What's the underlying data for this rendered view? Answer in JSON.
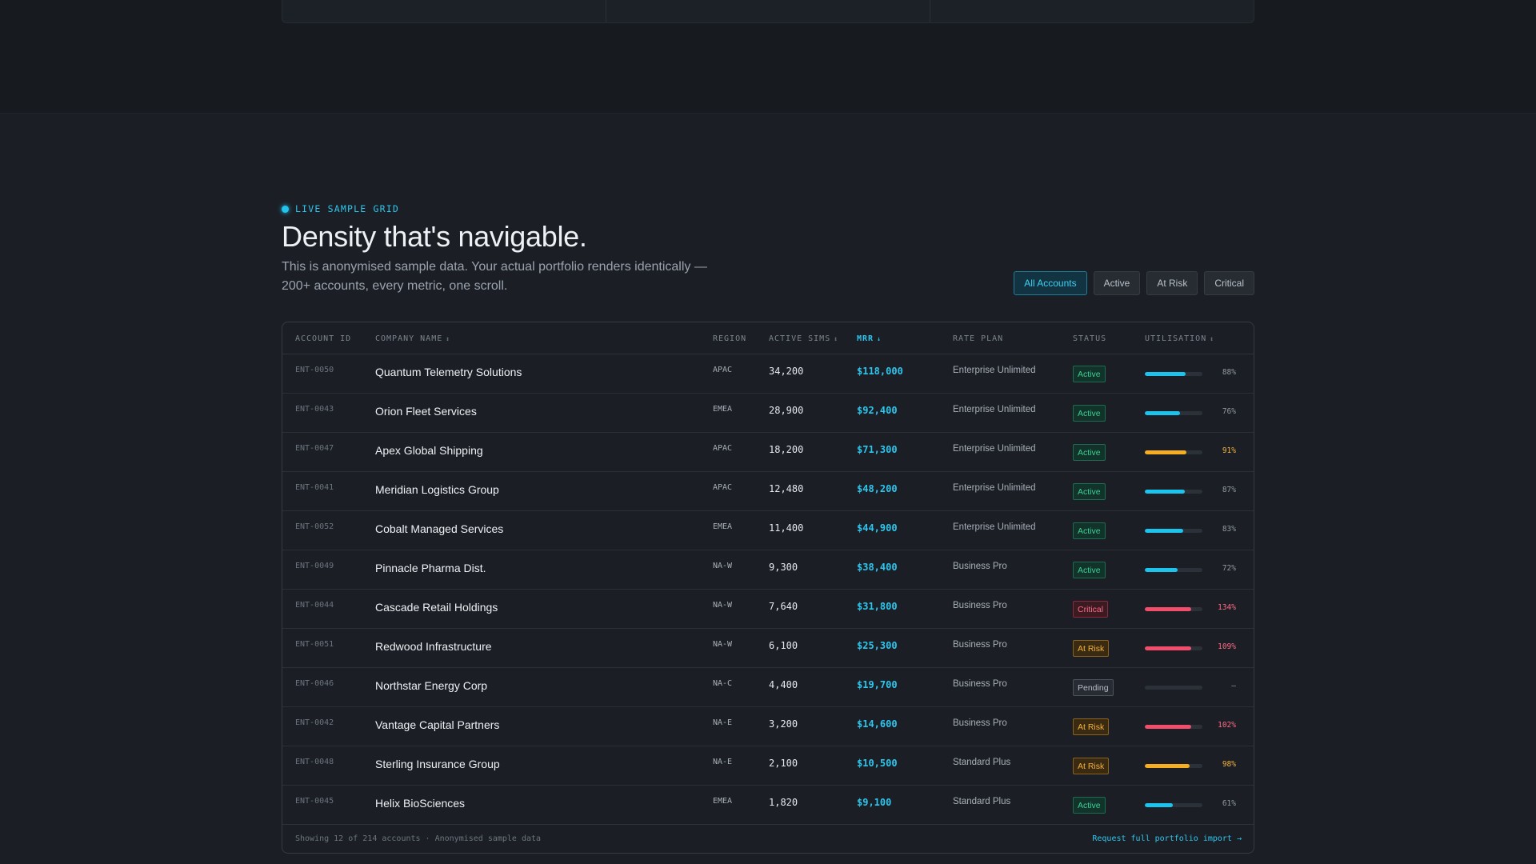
{
  "section": {
    "eyebrow": "LIVE SAMPLE GRID",
    "title": "Density that's navigable.",
    "subtitle": "This is anonymised sample data. Your actual portfolio renders identically — 200+ accounts, every metric, one scroll."
  },
  "filters": [
    {
      "label": "All Accounts",
      "active": true
    },
    {
      "label": "Active",
      "active": false
    },
    {
      "label": "At Risk",
      "active": false
    },
    {
      "label": "Critical",
      "active": false
    }
  ],
  "table": {
    "columns": {
      "account_id": "ACCOUNT ID",
      "company": "COMPANY NAME",
      "region": "REGION",
      "sims": "ACTIVE SIMS",
      "mrr": "MRR",
      "plan": "RATE PLAN",
      "status": "STATUS",
      "util": "UTILISATION"
    },
    "sort_arrows": {
      "company": "↕",
      "sims": "↕",
      "mrr": "↓",
      "util": "↕"
    },
    "rows": [
      {
        "id": "ENT-0050",
        "company": "Quantum Telemetry Solutions",
        "region": "APAC",
        "sims": "34,200",
        "mrr": "$118,000",
        "plan": "Enterprise Unlimited",
        "status": "Active",
        "util": 88,
        "util_label": "88%"
      },
      {
        "id": "ENT-0043",
        "company": "Orion Fleet Services",
        "region": "EMEA",
        "sims": "28,900",
        "mrr": "$92,400",
        "plan": "Enterprise Unlimited",
        "status": "Active",
        "util": 76,
        "util_label": "76%"
      },
      {
        "id": "ENT-0047",
        "company": "Apex Global Shipping",
        "region": "APAC",
        "sims": "18,200",
        "mrr": "$71,300",
        "plan": "Enterprise Unlimited",
        "status": "Active",
        "util": 91,
        "util_label": "91%"
      },
      {
        "id": "ENT-0041",
        "company": "Meridian Logistics Group",
        "region": "APAC",
        "sims": "12,480",
        "mrr": "$48,200",
        "plan": "Enterprise Unlimited",
        "status": "Active",
        "util": 87,
        "util_label": "87%"
      },
      {
        "id": "ENT-0052",
        "company": "Cobalt Managed Services",
        "region": "EMEA",
        "sims": "11,400",
        "mrr": "$44,900",
        "plan": "Enterprise Unlimited",
        "status": "Active",
        "util": 83,
        "util_label": "83%"
      },
      {
        "id": "ENT-0049",
        "company": "Pinnacle Pharma Dist.",
        "region": "NA-W",
        "sims": "9,300",
        "mrr": "$38,400",
        "plan": "Business Pro",
        "status": "Active",
        "util": 72,
        "util_label": "72%"
      },
      {
        "id": "ENT-0044",
        "company": "Cascade Retail Holdings",
        "region": "NA-W",
        "sims": "7,640",
        "mrr": "$31,800",
        "plan": "Business Pro",
        "status": "Critical",
        "util": 134,
        "util_label": "134%"
      },
      {
        "id": "ENT-0051",
        "company": "Redwood Infrastructure",
        "region": "NA-W",
        "sims": "6,100",
        "mrr": "$25,300",
        "plan": "Business Pro",
        "status": "At Risk",
        "util": 109,
        "util_label": "109%"
      },
      {
        "id": "ENT-0046",
        "company": "Northstar Energy Corp",
        "region": "NA-C",
        "sims": "4,400",
        "mrr": "$19,700",
        "plan": "Business Pro",
        "status": "Pending",
        "util": 0,
        "util_label": "—"
      },
      {
        "id": "ENT-0042",
        "company": "Vantage Capital Partners",
        "region": "NA-E",
        "sims": "3,200",
        "mrr": "$14,600",
        "plan": "Business Pro",
        "status": "At Risk",
        "util": 102,
        "util_label": "102%"
      },
      {
        "id": "ENT-0048",
        "company": "Sterling Insurance Group",
        "region": "NA-E",
        "sims": "2,100",
        "mrr": "$10,500",
        "plan": "Standard Plus",
        "status": "At Risk",
        "util": 98,
        "util_label": "98%"
      },
      {
        "id": "ENT-0045",
        "company": "Helix BioSciences",
        "region": "EMEA",
        "sims": "1,820",
        "mrr": "$9,100",
        "plan": "Standard Plus",
        "status": "Active",
        "util": 61,
        "util_label": "61%"
      }
    ]
  },
  "footer": {
    "info": "Showing 12 of 214 accounts · Anonymised sample data",
    "link": "Request full portfolio import →"
  },
  "colors": {
    "accent": "#2cc6ee",
    "active": "#3ccf94",
    "warning": "#f3b13c",
    "critical": "#ff6a85"
  },
  "icons": {
    "live_indicator": "live-dot-icon",
    "sort": "sort-arrow-icon"
  }
}
